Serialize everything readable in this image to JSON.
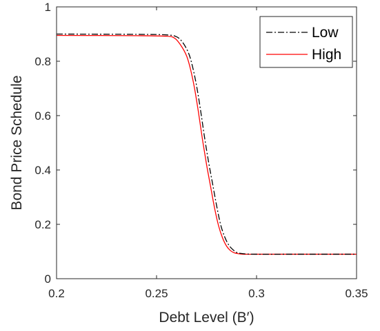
{
  "chart_data": {
    "type": "line",
    "title": "",
    "xlabel": "Debt Level (B′)",
    "ylabel": "Bond Price Schedule",
    "xlim": [
      0.2,
      0.35
    ],
    "ylim": [
      0,
      1
    ],
    "x_ticks": [
      0.2,
      0.25,
      0.3,
      0.35
    ],
    "x_tick_labels": [
      "0.2",
      "0.25",
      "0.3",
      "0.35"
    ],
    "y_ticks": [
      0,
      0.2,
      0.4,
      0.6,
      0.8,
      1
    ],
    "y_tick_labels": [
      "0",
      "0.2",
      "0.4",
      "0.6",
      "0.8",
      "1"
    ],
    "grid": false,
    "legend_position": "top-right",
    "series": [
      {
        "name": "Low",
        "color": "#000000",
        "style": "dash-dot",
        "x": [
          0.2,
          0.24,
          0.255,
          0.26,
          0.263,
          0.266,
          0.268,
          0.27,
          0.272,
          0.274,
          0.276,
          0.278,
          0.28,
          0.282,
          0.284,
          0.286,
          0.288,
          0.29,
          0.292,
          0.295,
          0.3,
          0.32,
          0.35
        ],
        "y": [
          0.9,
          0.899,
          0.897,
          0.89,
          0.87,
          0.83,
          0.78,
          0.71,
          0.62,
          0.52,
          0.43,
          0.35,
          0.27,
          0.2,
          0.155,
          0.125,
          0.108,
          0.097,
          0.093,
          0.091,
          0.09,
          0.09,
          0.09
        ]
      },
      {
        "name": "High",
        "color": "#ff0000",
        "style": "solid",
        "x": [
          0.2,
          0.24,
          0.255,
          0.259,
          0.262,
          0.265,
          0.267,
          0.269,
          0.271,
          0.273,
          0.275,
          0.277,
          0.279,
          0.281,
          0.283,
          0.285,
          0.287,
          0.289,
          0.292,
          0.295,
          0.3,
          0.32,
          0.35
        ],
        "y": [
          0.895,
          0.894,
          0.892,
          0.885,
          0.86,
          0.82,
          0.77,
          0.7,
          0.61,
          0.51,
          0.42,
          0.34,
          0.26,
          0.195,
          0.15,
          0.12,
          0.103,
          0.095,
          0.091,
          0.09,
          0.09,
          0.09,
          0.09
        ]
      }
    ]
  }
}
